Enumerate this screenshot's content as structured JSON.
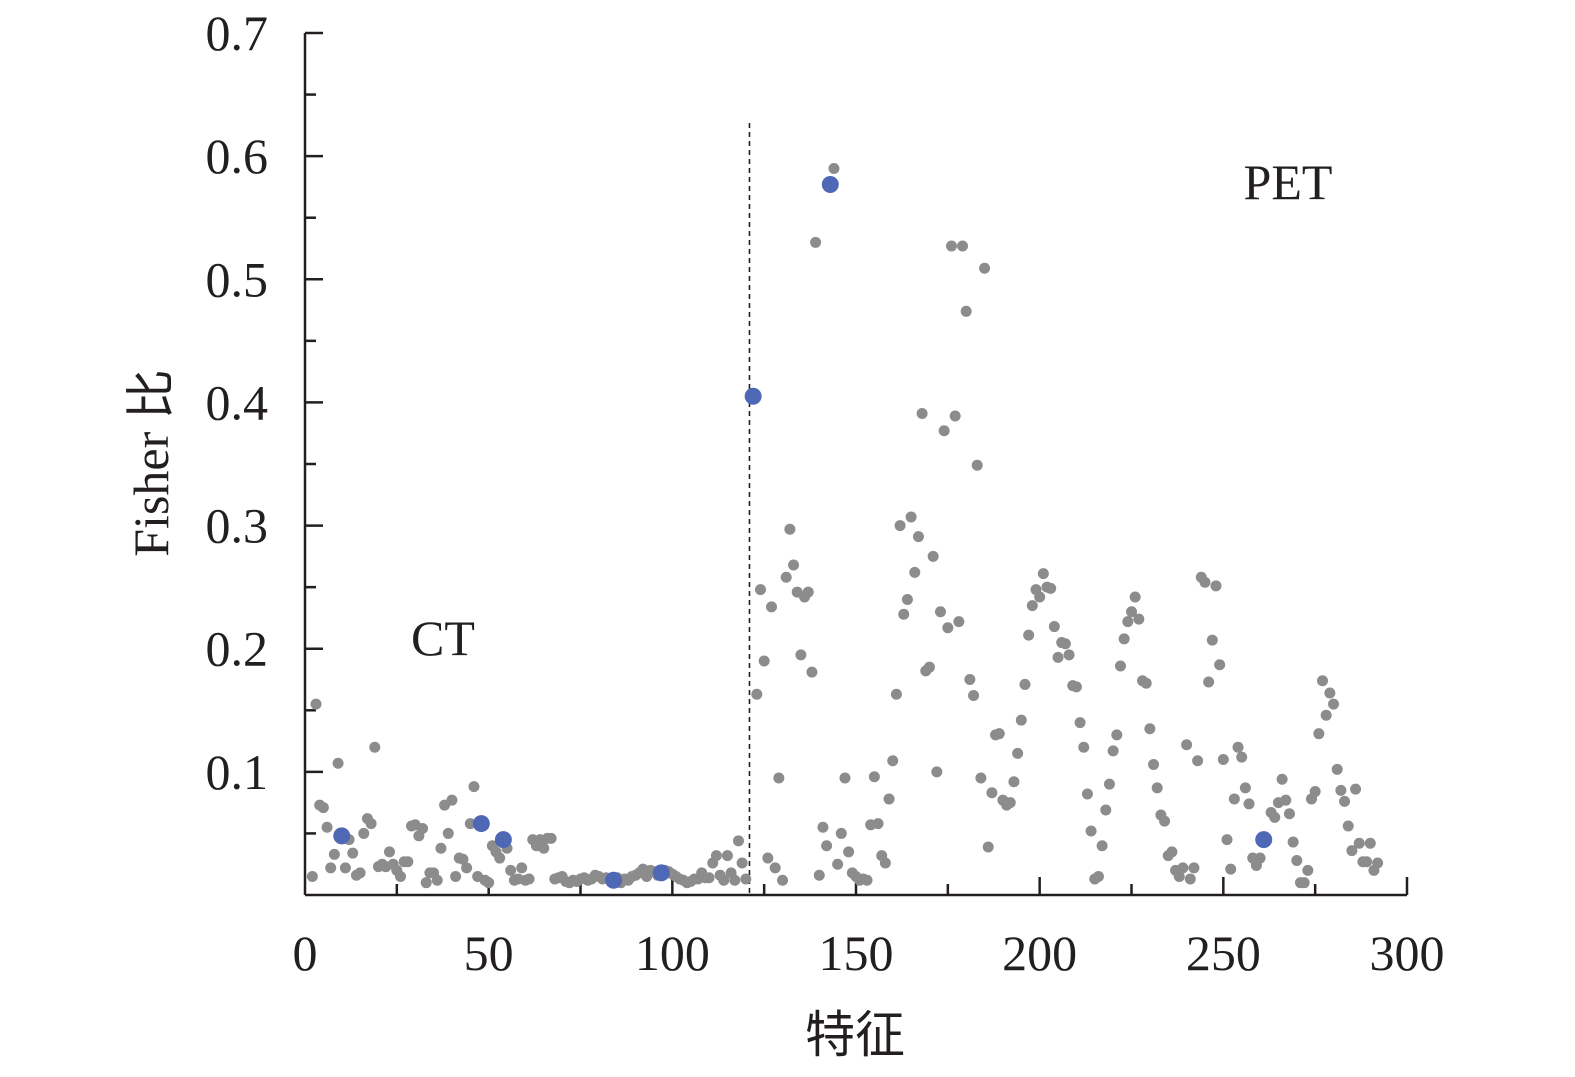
{
  "chart_data": {
    "type": "scatter",
    "title": "",
    "xlabel": "特征",
    "ylabel": "Fisher 比",
    "xlim": [
      0,
      300
    ],
    "ylim": [
      0,
      0.7
    ],
    "x_ticks": [
      "0",
      "50",
      "100",
      "150",
      "200",
      "250",
      "300"
    ],
    "y_ticks": [
      "0.1",
      "0.2",
      "0.3",
      "0.4",
      "0.5",
      "0.6",
      "0.7"
    ],
    "grid": false,
    "divider_x": 121,
    "annotations": [
      {
        "text": "CT",
        "x": 38,
        "y": 0.2
      },
      {
        "text": "PET",
        "x": 267,
        "y": 0.58
      }
    ],
    "colors": {
      "points": "#8c8c8c",
      "highlight": "#4f68b6",
      "axis": "#231f20"
    },
    "series": [
      {
        "style": "regular",
        "points": [
          [
            2,
            0.015
          ],
          [
            3,
            0.155
          ],
          [
            4,
            0.073
          ],
          [
            5,
            0.071
          ],
          [
            6,
            0.055
          ],
          [
            7,
            0.022
          ],
          [
            8,
            0.033
          ],
          [
            9,
            0.107
          ],
          [
            11,
            0.022
          ],
          [
            12,
            0.045
          ],
          [
            13,
            0.034
          ],
          [
            14,
            0.016
          ],
          [
            15,
            0.018
          ],
          [
            16,
            0.05
          ],
          [
            17,
            0.062
          ],
          [
            18,
            0.058
          ],
          [
            19,
            0.12
          ],
          [
            20,
            0.023
          ],
          [
            21,
            0.025
          ],
          [
            22,
            0.023
          ],
          [
            23,
            0.035
          ],
          [
            24,
            0.025
          ],
          [
            25,
            0.02
          ],
          [
            26,
            0.015
          ],
          [
            27,
            0.027
          ],
          [
            28,
            0.027
          ],
          [
            29,
            0.056
          ],
          [
            30,
            0.057
          ],
          [
            31,
            0.048
          ],
          [
            32,
            0.054
          ],
          [
            33,
            0.01
          ],
          [
            34,
            0.018
          ],
          [
            35,
            0.018
          ],
          [
            36,
            0.012
          ],
          [
            37,
            0.038
          ],
          [
            38,
            0.073
          ],
          [
            39,
            0.05
          ],
          [
            40,
            0.077
          ],
          [
            41,
            0.015
          ],
          [
            42,
            0.03
          ],
          [
            43,
            0.029
          ],
          [
            44,
            0.022
          ],
          [
            45,
            0.058
          ],
          [
            46,
            0.088
          ],
          [
            47,
            0.015
          ],
          [
            49,
            0.012
          ],
          [
            50,
            0.01
          ],
          [
            51,
            0.04
          ],
          [
            52,
            0.035
          ],
          [
            53,
            0.03
          ],
          [
            55,
            0.038
          ],
          [
            56,
            0.02
          ],
          [
            57,
            0.012
          ],
          [
            58,
            0.013
          ],
          [
            59,
            0.022
          ],
          [
            60,
            0.012
          ],
          [
            61,
            0.013
          ],
          [
            62,
            0.045
          ],
          [
            63,
            0.04
          ],
          [
            64,
            0.045
          ],
          [
            65,
            0.038
          ],
          [
            66,
            0.046
          ],
          [
            67,
            0.046
          ],
          [
            68,
            0.013
          ],
          [
            69,
            0.014
          ],
          [
            70,
            0.015
          ],
          [
            71,
            0.011
          ],
          [
            72,
            0.01
          ],
          [
            73,
            0.012
          ],
          [
            74,
            0.011
          ],
          [
            75,
            0.013
          ],
          [
            76,
            0.014
          ],
          [
            77,
            0.012
          ],
          [
            78,
            0.013
          ],
          [
            79,
            0.016
          ],
          [
            80,
            0.015
          ],
          [
            81,
            0.013
          ],
          [
            82,
            0.014
          ],
          [
            83,
            0.012
          ],
          [
            85,
            0.014
          ],
          [
            86,
            0.01
          ],
          [
            87,
            0.013
          ],
          [
            88,
            0.012
          ],
          [
            89,
            0.015
          ],
          [
            90,
            0.016
          ],
          [
            91,
            0.018
          ],
          [
            92,
            0.021
          ],
          [
            93,
            0.015
          ],
          [
            94,
            0.02
          ],
          [
            95,
            0.019
          ],
          [
            96,
            0.016
          ],
          [
            98,
            0.02
          ],
          [
            99,
            0.019
          ],
          [
            100,
            0.017
          ],
          [
            101,
            0.015
          ],
          [
            102,
            0.013
          ],
          [
            103,
            0.012
          ],
          [
            104,
            0.01
          ],
          [
            105,
            0.011
          ],
          [
            106,
            0.013
          ],
          [
            107,
            0.013
          ],
          [
            108,
            0.018
          ],
          [
            109,
            0.014
          ],
          [
            110,
            0.014
          ],
          [
            111,
            0.026
          ],
          [
            112,
            0.032
          ],
          [
            113,
            0.016
          ],
          [
            114,
            0.012
          ],
          [
            115,
            0.032
          ],
          [
            116,
            0.018
          ],
          [
            117,
            0.012
          ],
          [
            118,
            0.044
          ],
          [
            119,
            0.026
          ],
          [
            120,
            0.013
          ],
          [
            123,
            0.163
          ],
          [
            124,
            0.248
          ],
          [
            125,
            0.19
          ],
          [
            126,
            0.03
          ],
          [
            127,
            0.234
          ],
          [
            128,
            0.022
          ],
          [
            129,
            0.095
          ],
          [
            130,
            0.012
          ],
          [
            131,
            0.258
          ],
          [
            132,
            0.297
          ],
          [
            133,
            0.268
          ],
          [
            134,
            0.246
          ],
          [
            135,
            0.195
          ],
          [
            136,
            0.242
          ],
          [
            137,
            0.246
          ],
          [
            138,
            0.181
          ],
          [
            139,
            0.53
          ],
          [
            140,
            0.016
          ],
          [
            141,
            0.055
          ],
          [
            142,
            0.04
          ],
          [
            144,
            0.59
          ],
          [
            145,
            0.025
          ],
          [
            146,
            0.05
          ],
          [
            147,
            0.095
          ],
          [
            148,
            0.035
          ],
          [
            149,
            0.018
          ],
          [
            150,
            0.015
          ],
          [
            151,
            0.012
          ],
          [
            152,
            0.013
          ],
          [
            153,
            0.012
          ],
          [
            154,
            0.057
          ],
          [
            155,
            0.096
          ],
          [
            156,
            0.058
          ],
          [
            157,
            0.032
          ],
          [
            158,
            0.026
          ],
          [
            159,
            0.078
          ],
          [
            160,
            0.109
          ],
          [
            161,
            0.163
          ],
          [
            162,
            0.3
          ],
          [
            163,
            0.228
          ],
          [
            164,
            0.24
          ],
          [
            165,
            0.307
          ],
          [
            166,
            0.262
          ],
          [
            167,
            0.291
          ],
          [
            168,
            0.391
          ],
          [
            169,
            0.182
          ],
          [
            170,
            0.185
          ],
          [
            171,
            0.275
          ],
          [
            172,
            0.1
          ],
          [
            173,
            0.23
          ],
          [
            174,
            0.377
          ],
          [
            175,
            0.217
          ],
          [
            176,
            0.527
          ],
          [
            177,
            0.389
          ],
          [
            178,
            0.222
          ],
          [
            179,
            0.527
          ],
          [
            180,
            0.474
          ],
          [
            181,
            0.175
          ],
          [
            182,
            0.162
          ],
          [
            183,
            0.349
          ],
          [
            184,
            0.095
          ],
          [
            185,
            0.509
          ],
          [
            186,
            0.039
          ],
          [
            187,
            0.083
          ],
          [
            188,
            0.13
          ],
          [
            189,
            0.131
          ],
          [
            190,
            0.077
          ],
          [
            191,
            0.073
          ],
          [
            192,
            0.075
          ],
          [
            193,
            0.092
          ],
          [
            194,
            0.115
          ],
          [
            195,
            0.142
          ],
          [
            196,
            0.171
          ],
          [
            197,
            0.211
          ],
          [
            198,
            0.235
          ],
          [
            199,
            0.248
          ],
          [
            200,
            0.242
          ],
          [
            201,
            0.261
          ],
          [
            202,
            0.25
          ],
          [
            203,
            0.249
          ],
          [
            204,
            0.218
          ],
          [
            205,
            0.193
          ],
          [
            206,
            0.205
          ],
          [
            207,
            0.204
          ],
          [
            208,
            0.195
          ],
          [
            209,
            0.17
          ],
          [
            210,
            0.169
          ],
          [
            211,
            0.14
          ],
          [
            212,
            0.12
          ],
          [
            213,
            0.082
          ],
          [
            214,
            0.052
          ],
          [
            215,
            0.013
          ],
          [
            216,
            0.015
          ],
          [
            217,
            0.04
          ],
          [
            218,
            0.069
          ],
          [
            219,
            0.09
          ],
          [
            220,
            0.117
          ],
          [
            221,
            0.13
          ],
          [
            222,
            0.186
          ],
          [
            223,
            0.208
          ],
          [
            224,
            0.222
          ],
          [
            225,
            0.23
          ],
          [
            226,
            0.242
          ],
          [
            227,
            0.224
          ],
          [
            228,
            0.174
          ],
          [
            229,
            0.172
          ],
          [
            230,
            0.135
          ],
          [
            231,
            0.106
          ],
          [
            232,
            0.087
          ],
          [
            233,
            0.065
          ],
          [
            234,
            0.06
          ],
          [
            235,
            0.032
          ],
          [
            236,
            0.035
          ],
          [
            237,
            0.02
          ],
          [
            238,
            0.015
          ],
          [
            239,
            0.022
          ],
          [
            240,
            0.122
          ],
          [
            241,
            0.013
          ],
          [
            242,
            0.022
          ],
          [
            243,
            0.109
          ],
          [
            244,
            0.258
          ],
          [
            245,
            0.254
          ],
          [
            246,
            0.173
          ],
          [
            247,
            0.207
          ],
          [
            248,
            0.251
          ],
          [
            249,
            0.187
          ],
          [
            250,
            0.11
          ],
          [
            251,
            0.045
          ],
          [
            252,
            0.021
          ],
          [
            253,
            0.078
          ],
          [
            254,
            0.12
          ],
          [
            255,
            0.112
          ],
          [
            256,
            0.087
          ],
          [
            257,
            0.074
          ],
          [
            258,
            0.03
          ],
          [
            259,
            0.024
          ],
          [
            260,
            0.03
          ],
          [
            263,
            0.067
          ],
          [
            264,
            0.063
          ],
          [
            265,
            0.075
          ],
          [
            266,
            0.094
          ],
          [
            267,
            0.077
          ],
          [
            268,
            0.066
          ],
          [
            269,
            0.043
          ],
          [
            270,
            0.028
          ],
          [
            271,
            0.01
          ],
          [
            272,
            0.01
          ],
          [
            273,
            0.02
          ],
          [
            274,
            0.078
          ],
          [
            275,
            0.084
          ],
          [
            276,
            0.131
          ],
          [
            277,
            0.174
          ],
          [
            278,
            0.146
          ],
          [
            279,
            0.164
          ],
          [
            280,
            0.155
          ],
          [
            281,
            0.102
          ],
          [
            282,
            0.085
          ],
          [
            283,
            0.076
          ],
          [
            284,
            0.056
          ],
          [
            285,
            0.036
          ],
          [
            286,
            0.086
          ],
          [
            287,
            0.042
          ],
          [
            288,
            0.027
          ],
          [
            289,
            0.027
          ],
          [
            290,
            0.042
          ],
          [
            291,
            0.02
          ],
          [
            292,
            0.026
          ]
        ]
      },
      {
        "style": "highlight",
        "points": [
          [
            10,
            0.048
          ],
          [
            48,
            0.058
          ],
          [
            54,
            0.045
          ],
          [
            84,
            0.012
          ],
          [
            97,
            0.018
          ],
          [
            122,
            0.405
          ],
          [
            143,
            0.577
          ],
          [
            261,
            0.045
          ]
        ]
      }
    ]
  }
}
